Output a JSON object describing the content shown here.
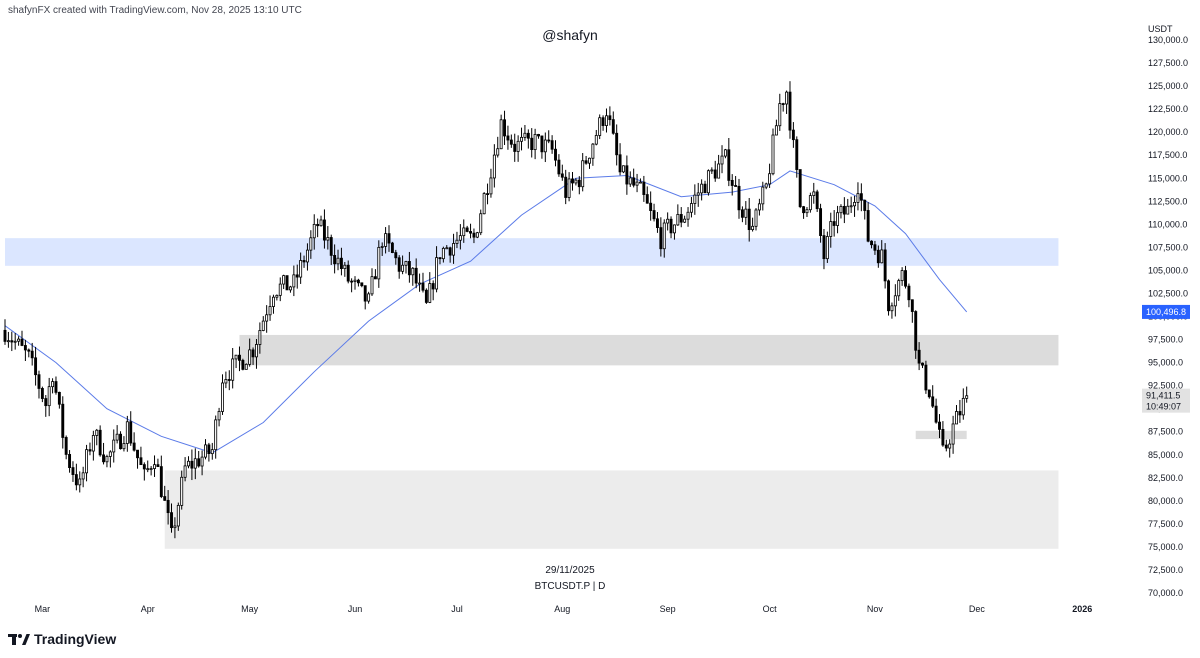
{
  "header": {
    "credit": "shafynFX created with TradingView.com, Nov 28, 2025 13:10 UTC"
  },
  "watermark": "@shafyn",
  "center_label": {
    "date": "29/11/2025",
    "symbol": "BTCUSDT.P | D"
  },
  "logo": {
    "text": "TradingView",
    "icon": "tradingview-logo-icon"
  },
  "colors": {
    "up": "#ffffff",
    "down": "#000000",
    "wick": "#000000",
    "ma": "#5b7be8",
    "price_badge": "#2962ff",
    "zone_blue": "#dbe6ff",
    "zone_gray": "#dcdcdc",
    "zone_light": "#ececec"
  },
  "chart_data": {
    "type": "candlestick",
    "symbol": "BTCUSDT.P",
    "interval": "D",
    "currency_label": "USDT",
    "ylim": [
      70000,
      130000
    ],
    "y_ticks": [
      70000,
      72500,
      75000,
      77500,
      80000,
      82500,
      85000,
      87500,
      90000,
      92500,
      95000,
      97500,
      100000,
      102500,
      105000,
      107500,
      110000,
      112500,
      115000,
      117500,
      120000,
      122500,
      125000,
      127500,
      130000
    ],
    "y_tick_labels": [
      "70,000.0",
      "72,500.0",
      "75,000.0",
      "77,500.0",
      "80,000.0",
      "82,500.0",
      "85,000.0",
      "87,500.0",
      "90,000.0",
      "92,500.0",
      "95,000.0",
      "97,500.0",
      "100,000.0",
      "102,500.0",
      "105,000.0",
      "107,500.0",
      "110,000.0",
      "112,500.0",
      "115,000.0",
      "117,500.0",
      "120,000.0",
      "122,500.0",
      "125,000.0",
      "127,500.0",
      "130,000.0"
    ],
    "x_start": "2025-02-18",
    "x_end": "2026-01-18",
    "x_ticks": [
      {
        "label": "Mar",
        "date": "2025-03-01"
      },
      {
        "label": "Apr",
        "date": "2025-04-01"
      },
      {
        "label": "May",
        "date": "2025-05-01"
      },
      {
        "label": "Jun",
        "date": "2025-06-01"
      },
      {
        "label": "Jul",
        "date": "2025-07-01"
      },
      {
        "label": "Aug",
        "date": "2025-08-01"
      },
      {
        "label": "Sep",
        "date": "2025-09-01"
      },
      {
        "label": "Oct",
        "date": "2025-10-01"
      },
      {
        "label": "Nov",
        "date": "2025-11-01"
      },
      {
        "label": "Dec",
        "date": "2025-12-01"
      },
      {
        "label": "2026",
        "date": "2026-01-01"
      }
    ],
    "last_price": {
      "value": 91411.5,
      "label": "91,411.5",
      "countdown": "10:49:07"
    },
    "ma_label": {
      "value": 100496.8,
      "label": "100,496.8"
    },
    "zones": [
      {
        "color": "blue",
        "from": "2025-02-18",
        "to": "2025-12-25",
        "low": 105500,
        "high": 108500
      },
      {
        "color": "gray",
        "from": "2025-04-28",
        "to": "2025-12-25",
        "low": 94700,
        "high": 98000
      },
      {
        "color": "light",
        "from": "2025-04-06",
        "to": "2025-12-25",
        "low": 74800,
        "high": 83300
      },
      {
        "color": "gray",
        "from": "2025-11-13",
        "to": "2025-11-28",
        "low": 86700,
        "high": 87600
      }
    ],
    "ma_points": [
      [
        "2025-02-18",
        99000
      ],
      [
        "2025-03-05",
        95000
      ],
      [
        "2025-03-20",
        90000
      ],
      [
        "2025-04-05",
        87000
      ],
      [
        "2025-04-20",
        85200
      ],
      [
        "2025-05-05",
        88500
      ],
      [
        "2025-05-20",
        94000
      ],
      [
        "2025-06-05",
        99500
      ],
      [
        "2025-06-20",
        103500
      ],
      [
        "2025-07-05",
        106000
      ],
      [
        "2025-07-20",
        111000
      ],
      [
        "2025-08-05",
        115000
      ],
      [
        "2025-08-20",
        115300
      ],
      [
        "2025-09-05",
        113000
      ],
      [
        "2025-09-20",
        113500
      ],
      [
        "2025-10-01",
        114300
      ],
      [
        "2025-10-07",
        115800
      ],
      [
        "2025-10-20",
        114300
      ],
      [
        "2025-11-01",
        112000
      ],
      [
        "2025-11-10",
        109000
      ],
      [
        "2025-11-20",
        104000
      ],
      [
        "2025-11-28",
        100500
      ]
    ],
    "anchors": [
      [
        "2025-02-18",
        98500
      ],
      [
        "2025-02-25",
        95500
      ],
      [
        "2025-03-02",
        90500
      ],
      [
        "2025-03-04",
        94000
      ],
      [
        "2025-03-08",
        85000
      ],
      [
        "2025-03-12",
        81500
      ],
      [
        "2025-03-16",
        87500
      ],
      [
        "2025-03-20",
        84500
      ],
      [
        "2025-03-26",
        88000
      ],
      [
        "2025-03-31",
        82500
      ],
      [
        "2025-04-03",
        85000
      ],
      [
        "2025-04-08",
        76000
      ],
      [
        "2025-04-12",
        83500
      ],
      [
        "2025-04-16",
        84500
      ],
      [
        "2025-04-20",
        85500
      ],
      [
        "2025-04-23",
        93500
      ],
      [
        "2025-04-28",
        95000
      ],
      [
        "2025-05-02",
        96500
      ],
      [
        "2025-05-08",
        103000
      ],
      [
        "2025-05-14",
        103500
      ],
      [
        "2025-05-21",
        110000
      ],
      [
        "2025-05-24",
        108000
      ],
      [
        "2025-05-30",
        104000
      ],
      [
        "2025-06-05",
        101500
      ],
      [
        "2025-06-09",
        108500
      ],
      [
        "2025-06-14",
        105500
      ],
      [
        "2025-06-18",
        104500
      ],
      [
        "2025-06-22",
        101000
      ],
      [
        "2025-06-26",
        107000
      ],
      [
        "2025-07-02",
        108500
      ],
      [
        "2025-07-06",
        108500
      ],
      [
        "2025-07-10",
        114500
      ],
      [
        "2025-07-14",
        121000
      ],
      [
        "2025-07-18",
        118500
      ],
      [
        "2025-07-24",
        119000
      ],
      [
        "2025-07-29",
        118000
      ],
      [
        "2025-08-02",
        113500
      ],
      [
        "2025-08-06",
        115000
      ],
      [
        "2025-08-10",
        119000
      ],
      [
        "2025-08-14",
        122500
      ],
      [
        "2025-08-18",
        115500
      ],
      [
        "2025-08-24",
        113500
      ],
      [
        "2025-08-30",
        108500
      ],
      [
        "2025-09-01",
        109500
      ],
      [
        "2025-09-06",
        111000
      ],
      [
        "2025-09-10",
        113500
      ],
      [
        "2025-09-14",
        115500
      ],
      [
        "2025-09-18",
        117000
      ],
      [
        "2025-09-22",
        112500
      ],
      [
        "2025-09-26",
        109500
      ],
      [
        "2025-09-30",
        114000
      ],
      [
        "2025-10-04",
        123000
      ],
      [
        "2025-10-06",
        124500
      ],
      [
        "2025-10-10",
        112000
      ],
      [
        "2025-10-14",
        113000
      ],
      [
        "2025-10-17",
        106500
      ],
      [
        "2025-10-20",
        110500
      ],
      [
        "2025-10-24",
        111500
      ],
      [
        "2025-10-27",
        114500
      ],
      [
        "2025-10-30",
        108500
      ],
      [
        "2025-11-03",
        106500
      ],
      [
        "2025-11-05",
        101500
      ],
      [
        "2025-11-09",
        104500
      ],
      [
        "2025-11-11",
        103000
      ],
      [
        "2025-11-14",
        94500
      ],
      [
        "2025-11-17",
        92000
      ],
      [
        "2025-11-21",
        85000
      ],
      [
        "2025-11-24",
        88000
      ],
      [
        "2025-11-28",
        91400
      ]
    ]
  }
}
